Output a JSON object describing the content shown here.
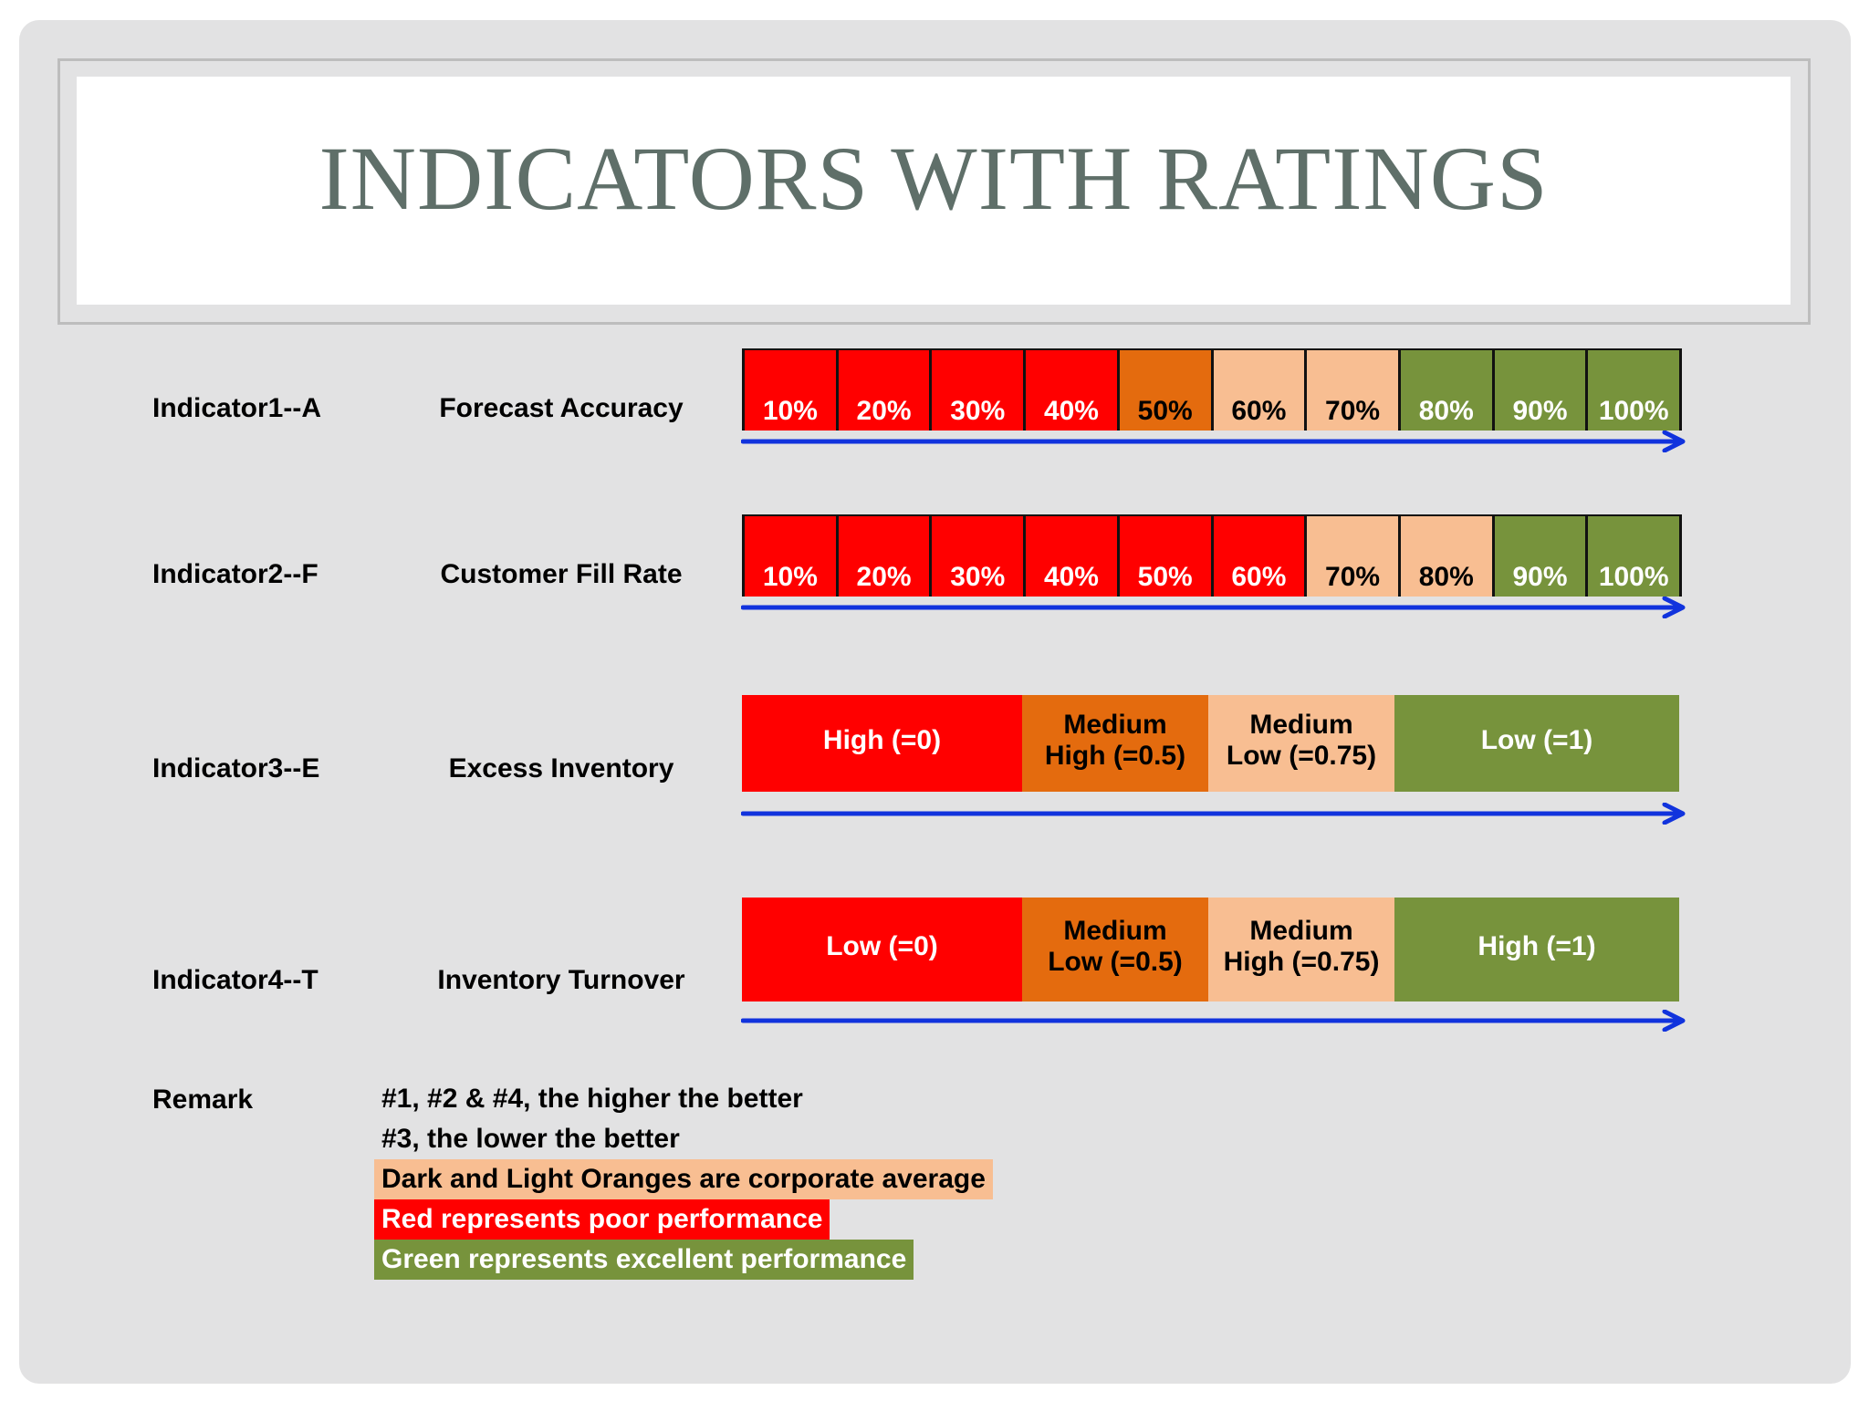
{
  "title": "INDICATORS WITH RATINGS",
  "colors": {
    "red": "#ff0000",
    "dark_orange": "#e46b0e",
    "light_orange": "#f8be92",
    "green": "#77933c",
    "arrow": "#1133dd"
  },
  "indicators": [
    {
      "label": "Indicator1--A",
      "metric": "Forecast Accuracy",
      "scale": "percent",
      "segments": [
        {
          "text": "10%",
          "color": "red"
        },
        {
          "text": "20%",
          "color": "red"
        },
        {
          "text": "30%",
          "color": "red"
        },
        {
          "text": "40%",
          "color": "red"
        },
        {
          "text": "50%",
          "color": "dark_orange"
        },
        {
          "text": "60%",
          "color": "light_orange"
        },
        {
          "text": "70%",
          "color": "light_orange"
        },
        {
          "text": "80%",
          "color": "green"
        },
        {
          "text": "90%",
          "color": "green"
        },
        {
          "text": "100%",
          "color": "green"
        }
      ]
    },
    {
      "label": "Indicator2--F",
      "metric": "Customer Fill Rate",
      "scale": "percent",
      "segments": [
        {
          "text": "10%",
          "color": "red"
        },
        {
          "text": "20%",
          "color": "red"
        },
        {
          "text": "30%",
          "color": "red"
        },
        {
          "text": "40%",
          "color": "red"
        },
        {
          "text": "50%",
          "color": "red"
        },
        {
          "text": "60%",
          "color": "red"
        },
        {
          "text": "70%",
          "color": "light_orange"
        },
        {
          "text": "80%",
          "color": "light_orange"
        },
        {
          "text": "90%",
          "color": "green"
        },
        {
          "text": "100%",
          "color": "green"
        }
      ]
    },
    {
      "label": "Indicator3--E",
      "metric": "Excess Inventory",
      "scale": "band",
      "segments": [
        {
          "line1": "",
          "line2": "High (=0)",
          "color": "red"
        },
        {
          "line1": "Medium",
          "line2": "High (=0.5)",
          "color": "dark_orange"
        },
        {
          "line1": "Medium",
          "line2": "Low (=0.75)",
          "color": "light_orange"
        },
        {
          "line1": "",
          "line2": "Low (=1)",
          "color": "green"
        }
      ]
    },
    {
      "label": "Indicator4--T",
      "metric": "Inventory Turnover",
      "scale": "band",
      "segments": [
        {
          "line1": "",
          "line2": "Low (=0)",
          "color": "red"
        },
        {
          "line1": "Medium",
          "line2": "Low (=0.5)",
          "color": "dark_orange"
        },
        {
          "line1": "Medium",
          "line2": "High (=0.75)",
          "color": "light_orange"
        },
        {
          "line1": "",
          "line2": "High (=1)",
          "color": "green"
        }
      ]
    }
  ],
  "remark": {
    "label": "Remark",
    "lines": [
      {
        "text": "#1, #2 & #4, the higher the better",
        "highlight": null
      },
      {
        "text": "#3, the lower the better",
        "highlight": null
      },
      {
        "text": "Dark and Light Oranges are corporate average",
        "highlight": "light_orange"
      },
      {
        "text": "Red represents poor performance",
        "highlight": "red"
      },
      {
        "text": "Green represents excellent performance",
        "highlight": "green"
      }
    ]
  }
}
